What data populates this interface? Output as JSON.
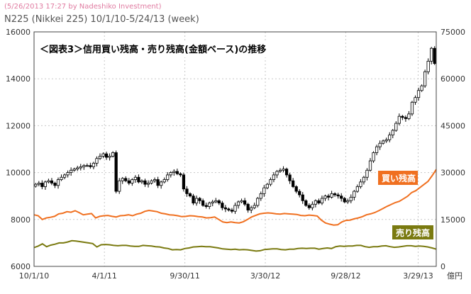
{
  "header": {
    "credit": "(5/26/2013 17:27 by Nadeshiko Investment)",
    "subtitle": "N225 (Nikkei 225)  10/1/10-5/24/13 (week)"
  },
  "colors": {
    "candle": "#000000",
    "buy_balance": "#f07020",
    "sell_balance": "#7a7a10",
    "grid": "#c8c8c8",
    "frame": "#444444"
  },
  "chart_data": {
    "type": "line",
    "title": "＜図表3＞信用買い残高・売り残高(金額ベース)の推移",
    "x_ticks": [
      "10/1/10",
      "4/1/11",
      "9/30/11",
      "3/30/12",
      "9/28/12",
      "3/29/13"
    ],
    "left_axis": {
      "ticks": [
        "16000",
        "14000",
        "12000",
        "10000",
        "8000",
        "6000"
      ],
      "range": [
        6000,
        16000
      ]
    },
    "right_axis": {
      "ticks": [
        "75000",
        "60000",
        "45000",
        "30000",
        "15000",
        "0"
      ],
      "range": [
        0,
        75000
      ],
      "unit": "億円"
    },
    "nikkei_weekly_close": [
      9500,
      9550,
      9400,
      9600,
      9650,
      9550,
      9450,
      9700,
      9800,
      9900,
      10000,
      10100,
      10150,
      10200,
      10250,
      10300,
      10300,
      10250,
      10400,
      10600,
      10700,
      10800,
      10650,
      10700,
      10850,
      9200,
      9650,
      9750,
      9650,
      9550,
      9700,
      9800,
      9600,
      9650,
      9500,
      9550,
      9650,
      9700,
      9450,
      9600,
      9700,
      9900,
      10000,
      10050,
      9950,
      9900,
      9300,
      9100,
      9000,
      8700,
      8900,
      8800,
      8600,
      8550,
      8700,
      8750,
      8800,
      8700,
      8500,
      8450,
      8400,
      8350,
      8600,
      8750,
      8800,
      8650,
      8400,
      8500,
      8600,
      8900,
      9100,
      9350,
      9500,
      9700,
      9900,
      10050,
      10100,
      10150,
      9900,
      9650,
      9400,
      9200,
      9050,
      8800,
      8600,
      8500,
      8650,
      8800,
      8700,
      8900,
      9000,
      8950,
      9100,
      9050,
      9000,
      8900,
      8750,
      8800,
      8950,
      9200,
      9400,
      9600,
      9800,
      10100,
      10500,
      10850,
      11100,
      11250,
      11350,
      11400,
      11600,
      11800,
      12100,
      12400,
      12350,
      12300,
      12500,
      13000,
      13200,
      13500,
      13700,
      14300,
      14750,
      15300,
      14650
    ],
    "series": [
      {
        "name": "買い残高",
        "values": [
          16500,
          16200,
          15000,
          15500,
          15700,
          16000,
          16800,
          17000,
          17500,
          17300,
          17800,
          17200,
          16500,
          16700,
          16900,
          15500,
          16000,
          16200,
          16300,
          16000,
          15800,
          16200,
          16300,
          16500,
          16200,
          16700,
          17000,
          17600,
          17900,
          17700,
          17500,
          17000,
          16800,
          16500,
          16400,
          16200,
          15900,
          16000,
          16200,
          16100,
          15900,
          15800,
          15500,
          15600,
          15800,
          15000,
          14200,
          14000,
          14200,
          14000,
          13900,
          14300,
          15000,
          15800,
          16300,
          16800,
          17000,
          17100,
          17000,
          16800,
          16700,
          16900,
          16800,
          16700,
          16600,
          16300,
          16200,
          16400,
          16300,
          16100,
          14800,
          13900,
          13500,
          13200,
          13300,
          14200,
          14700,
          14800,
          15200,
          15500,
          15900,
          16500,
          16800,
          17200,
          17800,
          18500,
          19200,
          19800,
          20400,
          20800,
          21600,
          22400,
          23600,
          24200,
          25200,
          26200,
          27200,
          29000,
          31000
        ]
      },
      {
        "name": "売り残高",
        "values": [
          6000,
          6500,
          7200,
          6300,
          6800,
          7100,
          7500,
          7500,
          7800,
          8200,
          8100,
          7900,
          7700,
          7500,
          7300,
          6200,
          6900,
          7000,
          6900,
          6700,
          6600,
          6700,
          6700,
          6500,
          6400,
          6400,
          6700,
          6600,
          6500,
          6300,
          6200,
          5900,
          5700,
          5300,
          5400,
          5300,
          5700,
          5900,
          6200,
          6300,
          6400,
          6300,
          6300,
          6100,
          5900,
          5600,
          5500,
          5400,
          5500,
          5300,
          5400,
          5300,
          5100,
          4900,
          5000,
          5400,
          5500,
          5600,
          5600,
          5400,
          5300,
          5500,
          5500,
          5700,
          5800,
          5700,
          5800,
          5800,
          5500,
          5700,
          5900,
          5700,
          6300,
          6500,
          6400,
          6500,
          6500,
          6700,
          6700,
          6300,
          6100,
          6300,
          6300,
          6500,
          6600,
          6300,
          6100,
          6200,
          6400,
          6600,
          6600,
          6400,
          6500,
          6400,
          6200,
          5900,
          5500
        ]
      }
    ],
    "legend": [
      "買い残高",
      "売り残高"
    ]
  }
}
